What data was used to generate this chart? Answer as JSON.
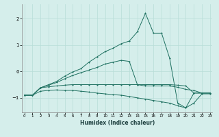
{
  "xlabel": "Humidex (Indice chaleur)",
  "x": [
    0,
    1,
    2,
    3,
    4,
    5,
    6,
    7,
    8,
    9,
    10,
    11,
    12,
    13,
    14,
    15,
    16,
    17,
    18,
    19,
    20,
    21,
    22,
    23
  ],
  "line1": [
    -0.9,
    -0.9,
    -0.62,
    -0.5,
    -0.38,
    -0.18,
    -0.02,
    0.1,
    0.35,
    0.55,
    0.75,
    0.88,
    1.05,
    1.15,
    1.5,
    2.2,
    1.45,
    1.45,
    0.5,
    -1.2,
    -1.38,
    -0.82,
    -0.82,
    -0.82
  ],
  "line2": [
    -0.9,
    -0.9,
    -0.62,
    -0.52,
    -0.42,
    -0.28,
    -0.15,
    -0.05,
    0.05,
    0.15,
    0.28,
    0.35,
    0.42,
    0.38,
    -0.5,
    -0.55,
    -0.55,
    -0.55,
    -0.55,
    -0.6,
    -0.68,
    -0.72,
    -0.82,
    -0.82
  ],
  "line3": [
    -0.9,
    -0.9,
    -0.62,
    -0.58,
    -0.55,
    -0.52,
    -0.5,
    -0.5,
    -0.5,
    -0.5,
    -0.5,
    -0.5,
    -0.5,
    -0.5,
    -0.5,
    -0.5,
    -0.5,
    -0.5,
    -0.5,
    -0.52,
    -0.55,
    -0.82,
    -0.82,
    -0.82
  ],
  "line4": [
    -0.9,
    -0.9,
    -0.75,
    -0.72,
    -0.7,
    -0.72,
    -0.72,
    -0.75,
    -0.78,
    -0.82,
    -0.85,
    -0.88,
    -0.9,
    -0.95,
    -1.0,
    -1.05,
    -1.1,
    -1.15,
    -1.2,
    -1.3,
    -1.38,
    -1.2,
    -0.85,
    -0.85
  ],
  "line_color": "#1e7060",
  "bg_color": "#d5eeeb",
  "grid_color": "#b8ddd8",
  "ylim": [
    -1.55,
    2.55
  ],
  "xlim": [
    -0.3,
    23.3
  ],
  "yticks": [
    -1,
    0,
    1,
    2
  ],
  "xticks": [
    0,
    1,
    2,
    3,
    4,
    5,
    6,
    7,
    8,
    9,
    10,
    11,
    12,
    13,
    14,
    15,
    16,
    17,
    18,
    19,
    20,
    21,
    22,
    23
  ]
}
